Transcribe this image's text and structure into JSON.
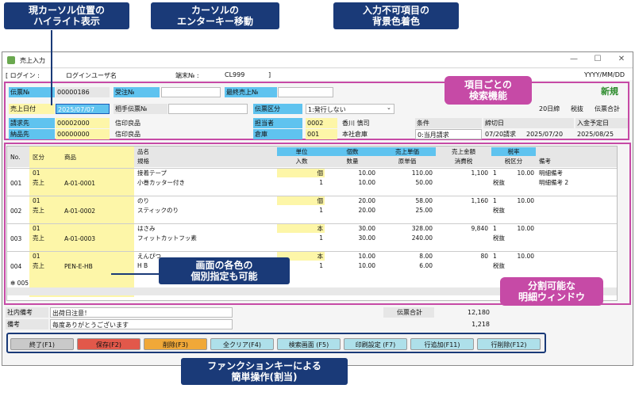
{
  "annotations": {
    "cursor_highlight": [
      "現カーソル位置の",
      "ハイライト表示"
    ],
    "enter_key": [
      "カーソルの",
      "エンターキー移動"
    ],
    "bg_color": [
      "入力不可項目の",
      "背景色着色"
    ],
    "search": [
      "項目ごとの",
      "検索機能"
    ],
    "colors": [
      "画面の各色の",
      "個別指定も可能"
    ],
    "split": [
      "分割可能な",
      "明細ウィンドウ"
    ],
    "fkeys": [
      "ファンクションキーによる",
      "簡単操作(割当)"
    ]
  },
  "window": {
    "title": "売上入力",
    "minimize": "—",
    "maximize": "☐",
    "close": "✕"
  },
  "header": {
    "login_label": "[ ログイン :",
    "login_user": "ログインユーザ名",
    "terminal_label": "端末№ :",
    "terminal_value": "CL999",
    "bracket_close": "]",
    "date_format": "YYYY/MM/DD"
  },
  "form": {
    "denpyo_no_label": "伝票№",
    "denpyo_no": "00000186",
    "juchu_no_label": "受注№",
    "juchu_no": "",
    "saishu_label": "最終売上№",
    "saishu": "",
    "mode": "新規",
    "uriage_date_label": "売上日付",
    "uriage_date": "2025/07/07",
    "aite_label": "相手伝票№",
    "aite": "",
    "denpyo_kubun_label": "伝票区分",
    "denpyo_kubun": "1:発行しない",
    "seikyu_label": "請求先",
    "seikyu_code": "00002000",
    "seikyu_name": "信印良品",
    "tanto_label": "担当者",
    "tanto_code": "0002",
    "tanto_name": "香川 慎司",
    "nohin_label": "納品先",
    "nohin_code": "00000000",
    "nohin_name": "信印良品",
    "soko_label": "倉庫",
    "soko_code": "001",
    "soko_name": "本社倉庫",
    "shime": "20日締",
    "zeinuki": "税抜",
    "denpyo_gokei": "伝票合計",
    "jyoken_label": "条件",
    "jyoken": "0:当月請求",
    "jyoken_date": "07/20請求",
    "shimebi_label": "締切日",
    "shimebi": "2025/07/20",
    "nyukin_label": "入金予定日",
    "nyukin": "2025/08/25"
  },
  "grid": {
    "headers": {
      "no": "No.",
      "kubun": "区分",
      "shohin": "商品",
      "hinmei": "品名",
      "kikaku": "規格",
      "tani": "単位",
      "irisu": "入数",
      "kosu": "個数",
      "suryo": "数量",
      "tanka": "売上単価",
      "genka": "原単価",
      "kingaku": "売上金額",
      "shohizei": "消費税",
      "zei": "税率",
      "zeikubun": "税区分",
      "biko": "備考"
    },
    "rows": [
      {
        "no": "001",
        "kubun": "01",
        "kubun2": "売上",
        "shohin": "A-01-0001",
        "hinmei": "接着テープ",
        "kikaku": "小巻カッター付き",
        "tani": "個",
        "irisu": "1",
        "kosu": "10.00",
        "suryo": "10.00",
        "tanka": "110.00",
        "genka": "50.00",
        "kingaku": "1,100",
        "zei1": "1",
        "zei_rate": "10.00",
        "zeikubun": "税抜",
        "biko": "明細備考",
        "biko2": "明細備考 2"
      },
      {
        "no": "002",
        "kubun": "01",
        "kubun2": "売上",
        "shohin": "A-01-0002",
        "hinmei": "のり",
        "kikaku": "スティックのり",
        "tani": "個",
        "irisu": "1",
        "kosu": "20.00",
        "suryo": "20.00",
        "tanka": "58.00",
        "genka": "25.00",
        "kingaku": "1,160",
        "zei1": "1",
        "zei_rate": "10.00",
        "zeikubun": "税抜",
        "biko": "",
        "biko2": ""
      },
      {
        "no": "003",
        "kubun": "01",
        "kubun2": "売上",
        "shohin": "A-01-0003",
        "hinmei": "はさみ",
        "kikaku": "フィットカットフッ素",
        "tani": "本",
        "irisu": "1",
        "kosu": "30.00",
        "suryo": "30.00",
        "tanka": "328.00",
        "genka": "240.00",
        "kingaku": "9,840",
        "zei1": "1",
        "zei_rate": "10.00",
        "zeikubun": "税抜",
        "biko": "",
        "biko2": ""
      },
      {
        "no": "004",
        "kubun": "01",
        "kubun2": "売上",
        "shohin": "PEN-E-HB",
        "hinmei": "えんぴつ",
        "kikaku": "H B",
        "tani": "本",
        "irisu": "1",
        "kosu": "10.00",
        "suryo": "10.00",
        "tanka": "8.00",
        "genka": "6.00",
        "kingaku": "80",
        "zei1": "1",
        "zei_rate": "10.00",
        "zeikubun": "税抜",
        "biko": "",
        "biko2": ""
      }
    ],
    "new_row": "✻ 005"
  },
  "footer": {
    "shanai_label": "社内備考",
    "shanai": "出荷日注意！",
    "biko_label": "備考",
    "biko": "毎度ありがとうございます",
    "total_label": "伝票合計",
    "total": "12,180",
    "tax": "1,218"
  },
  "fkeys": [
    {
      "label": "終了(F1)",
      "color": "#c9c9c9"
    },
    {
      "label": "保存(F2)",
      "color": "#e2584a"
    },
    {
      "label": "削除(F3)",
      "color": "#f0a838"
    },
    {
      "label": "全クリア(F4)",
      "color": "#aee0ea"
    },
    {
      "label": "検索画面 (F5)",
      "color": "#aee0ea"
    },
    {
      "label": "印刷設定 (F7)",
      "color": "#aee0ea"
    },
    {
      "label": "行追加(F11)",
      "color": "#aee0ea"
    },
    {
      "label": "行削除(F12)",
      "color": "#aee0ea"
    }
  ]
}
